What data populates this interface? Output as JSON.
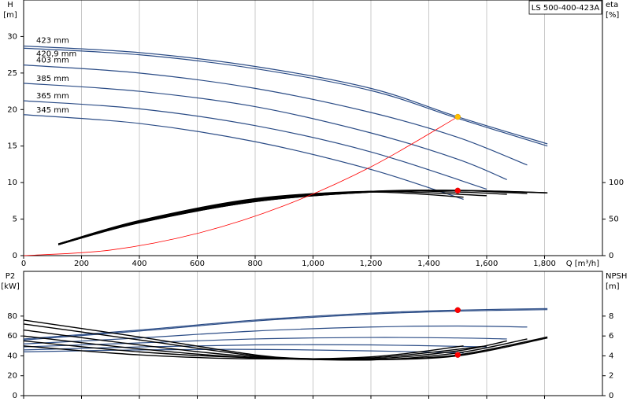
{
  "chart_data": [
    {
      "type": "line",
      "title": "LS 500-400-423A",
      "y_label": "H",
      "y_unit": "[m]",
      "y2_label": "eta",
      "y2_unit": "[%]",
      "x_label": "Q [m³/h]",
      "xlim": [
        0,
        2000
      ],
      "xticks": [
        0,
        200,
        400,
        600,
        800,
        {
          "value": 1000,
          "label": "1,000"
        },
        {
          "value": 1200,
          "label": "1,200"
        },
        {
          "value": 1400,
          "label": "1,400"
        },
        {
          "value": 1600,
          "label": "1,600"
        },
        {
          "value": 1800,
          "label": "1,800"
        }
      ],
      "show_x_tick_labels": true,
      "ylim": [
        0,
        35
      ],
      "yticks": [
        0,
        5,
        10,
        15,
        20,
        25,
        30
      ],
      "y2lim": [
        0,
        350
      ],
      "y2ticks": [
        0,
        50,
        100
      ],
      "grid": "x",
      "series": [
        {
          "name": "423 mm",
          "color": "#2b4c86",
          "x": [
            0,
            400,
            800,
            1200,
            1500,
            1810
          ],
          "values": [
            28.7,
            27.8,
            25.9,
            22.9,
            19.0,
            15.3
          ]
        },
        {
          "name": "420,9 mm",
          "color": "#2b4c86",
          "x": [
            0,
            400,
            800,
            1200,
            1500,
            1810
          ],
          "values": [
            28.4,
            27.5,
            25.6,
            22.6,
            18.8,
            15.0
          ]
        },
        {
          "name": "403 mm",
          "color": "#2b4c86",
          "x": [
            0,
            400,
            800,
            1200,
            1500,
            1740
          ],
          "values": [
            26.1,
            25.0,
            22.9,
            19.6,
            16.2,
            12.4
          ]
        },
        {
          "name": "385 mm",
          "color": "#2b4c86",
          "x": [
            0,
            400,
            800,
            1200,
            1500,
            1670
          ],
          "values": [
            23.6,
            22.5,
            20.4,
            16.8,
            13.2,
            10.4
          ]
        },
        {
          "name": "365 mm",
          "color": "#2b4c86",
          "x": [
            0,
            400,
            800,
            1200,
            1600
          ],
          "values": [
            21.2,
            20.1,
            17.8,
            14.2,
            9.1
          ]
        },
        {
          "name": "345 mm",
          "color": "#2b4c86",
          "x": [
            0,
            400,
            800,
            1200,
            1520
          ],
          "values": [
            19.3,
            18.1,
            15.6,
            11.8,
            7.7
          ]
        },
        {
          "color": "#000000",
          "axis": "y2",
          "x": [
            120,
            400,
            800,
            1200,
            1500,
            1810
          ],
          "values": [
            15,
            45,
            74,
            87,
            89.5,
            86
          ]
        },
        {
          "color": "#000000",
          "axis": "y2",
          "x": [
            120,
            400,
            800,
            1200,
            1500,
            1810
          ],
          "values": [
            15,
            45,
            74,
            87,
            89,
            86
          ]
        },
        {
          "color": "#000000",
          "axis": "y2",
          "x": [
            120,
            400,
            800,
            1200,
            1500,
            1740
          ],
          "values": [
            15,
            46,
            75,
            88,
            89,
            85
          ]
        },
        {
          "color": "#000000",
          "axis": "y2",
          "x": [
            120,
            400,
            800,
            1200,
            1500,
            1670
          ],
          "values": [
            16,
            47,
            76,
            88,
            87,
            84
          ]
        },
        {
          "color": "#000000",
          "axis": "y2",
          "x": [
            120,
            400,
            800,
            1200,
            1600
          ],
          "values": [
            16,
            47,
            77,
            88,
            82
          ]
        },
        {
          "color": "#000000",
          "axis": "y2",
          "x": [
            120,
            400,
            800,
            1200,
            1520
          ],
          "values": [
            16,
            48,
            78,
            87,
            80
          ]
        },
        {
          "color": "#ff0000",
          "x": [
            0,
            300,
            600,
            900,
            1200,
            1500
          ],
          "values": [
            0,
            0.76,
            3.04,
            6.84,
            12.16,
            19.0
          ]
        }
      ],
      "markers": [
        {
          "x": 1500,
          "value": 19.0,
          "color": "#ffc000"
        },
        {
          "x": 1500,
          "value": 89,
          "axis": "y2",
          "color": "#ff0000"
        }
      ]
    },
    {
      "type": "line",
      "y_label": "P2",
      "y_unit": "[kW]",
      "y2_label": "NPSH",
      "y2_unit": "[m]",
      "xlim": [
        0,
        2000
      ],
      "xticks": [
        0,
        200,
        400,
        600,
        800,
        1000,
        1200,
        1400,
        1600,
        1800
      ],
      "show_x_tick_labels": false,
      "ylim": [
        0,
        125
      ],
      "yticks": [
        0,
        20,
        40,
        60,
        80
      ],
      "y2lim": [
        0,
        12.5
      ],
      "y2ticks": [
        0,
        2,
        4,
        6,
        8
      ],
      "grid": "x",
      "series": [
        {
          "color": "#2b4c86",
          "x": [
            0,
            400,
            800,
            1200,
            1500,
            1810
          ],
          "values": [
            57,
            66,
            76,
            83,
            86,
            87.5
          ]
        },
        {
          "color": "#2b4c86",
          "x": [
            0,
            400,
            800,
            1200,
            1500,
            1810
          ],
          "values": [
            56,
            65,
            75,
            82,
            85,
            86.5
          ]
        },
        {
          "color": "#2b4c86",
          "x": [
            0,
            400,
            800,
            1200,
            1500,
            1740
          ],
          "values": [
            52,
            58,
            65,
            69,
            70,
            69
          ]
        },
        {
          "color": "#2b4c86",
          "x": [
            0,
            400,
            800,
            1200,
            1500,
            1670
          ],
          "values": [
            49,
            53,
            57,
            58.5,
            58,
            57
          ]
        },
        {
          "color": "#2b4c86",
          "x": [
            0,
            400,
            800,
            1200,
            1600
          ],
          "values": [
            46,
            49,
            51,
            51,
            49
          ]
        },
        {
          "color": "#2b4c86",
          "x": [
            0,
            400,
            800,
            1200,
            1520
          ],
          "values": [
            44,
            46,
            46.5,
            45,
            43
          ]
        },
        {
          "color": "#000000",
          "axis": "y2",
          "x": [
            0,
            400,
            800,
            1000,
            1200,
            1500,
            1810
          ],
          "values": [
            7.6,
            5.9,
            4.1,
            3.7,
            3.6,
            4.1,
            5.9
          ]
        },
        {
          "color": "#000000",
          "axis": "y2",
          "x": [
            0,
            400,
            800,
            1000,
            1200,
            1500,
            1810
          ],
          "values": [
            7.2,
            5.6,
            4.0,
            3.7,
            3.6,
            4.0,
            5.8
          ]
        },
        {
          "color": "#000000",
          "axis": "y2",
          "x": [
            0,
            400,
            800,
            1200,
            1500,
            1740
          ],
          "values": [
            6.6,
            5.1,
            3.9,
            3.6,
            4.3,
            5.7
          ]
        },
        {
          "color": "#000000",
          "axis": "y2",
          "x": [
            0,
            400,
            800,
            1200,
            1500,
            1670
          ],
          "values": [
            6.0,
            4.7,
            3.8,
            3.7,
            4.5,
            5.5
          ]
        },
        {
          "color": "#000000",
          "axis": "y2",
          "x": [
            0,
            400,
            800,
            1200,
            1600
          ],
          "values": [
            5.5,
            4.4,
            3.8,
            3.8,
            5.0
          ]
        },
        {
          "color": "#000000",
          "axis": "y2",
          "x": [
            0,
            400,
            800,
            1200,
            1520
          ],
          "values": [
            5.0,
            4.1,
            3.7,
            3.9,
            5.0
          ]
        }
      ],
      "markers": [
        {
          "x": 1500,
          "value": 86,
          "color": "#ff0000"
        },
        {
          "x": 1500,
          "value": 4.1,
          "axis": "y2",
          "color": "#ff0000"
        }
      ]
    }
  ]
}
